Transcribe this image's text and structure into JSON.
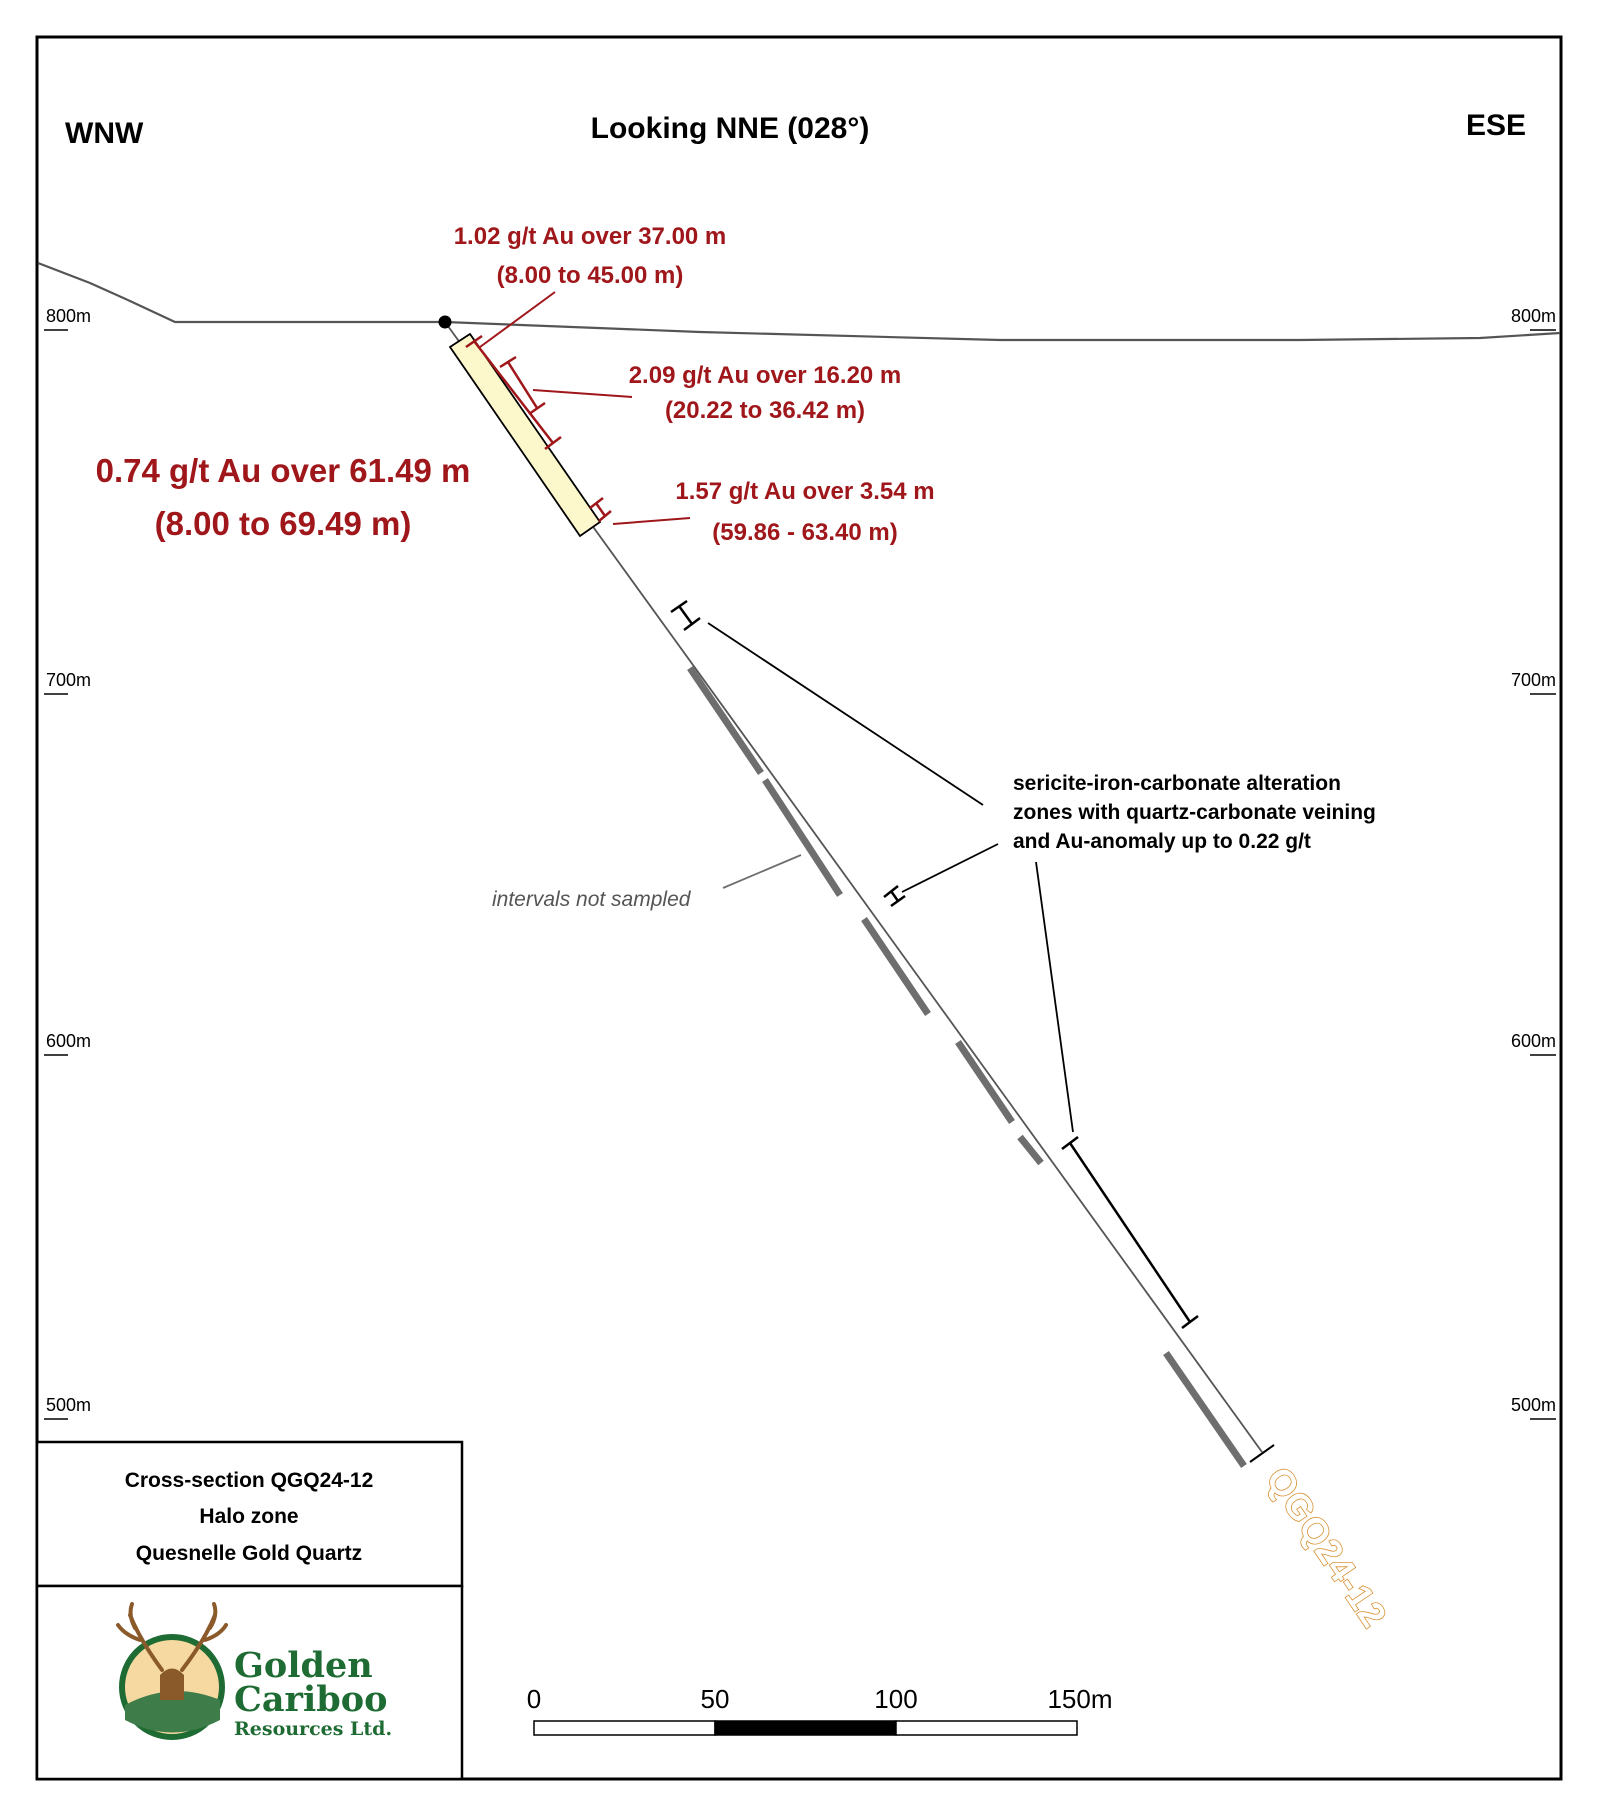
{
  "header": {
    "left": "WNW",
    "center": "Looking NNE (028°)",
    "right": "ESE"
  },
  "elevations": [
    "800m",
    "700m",
    "600m",
    "500m"
  ],
  "intercepts": {
    "main": {
      "line1": "0.74 g/t Au over 61.49 m",
      "line2": "(8.00 to 69.49 m)"
    },
    "i1": {
      "line1": "1.02 g/t Au over 37.00 m",
      "line2": "(8.00 to 45.00 m)"
    },
    "i2": {
      "line1": "2.09 g/t Au over 16.20 m",
      "line2": "(20.22 to 36.42 m)"
    },
    "i3": {
      "line1": "1.57 g/t Au over 3.54 m",
      "line2": "(59.86 - 63.40 m)"
    }
  },
  "alteration_note": {
    "line1": "sericite-iron-carbonate alteration",
    "line2": "zones with quartz-carbonate veining",
    "line3": "and Au-anomaly up to 0.22 g/t"
  },
  "not_sampled_note": "intervals not sampled",
  "hole_id": "QGQ24-12",
  "title_block": {
    "line1": "Cross-section QGQ24-12",
    "line2": "Halo zone",
    "line3": "Quesnelle Gold Quartz"
  },
  "logo": {
    "word1": "Golden",
    "word2": "Cariboo",
    "word3": "Resources Ltd."
  },
  "scale_bar": {
    "labels": [
      "0",
      "50",
      "100",
      "150m"
    ]
  },
  "colors": {
    "intercept_red": "#a0171b",
    "mineralized_zone_fill": "#fdf8cc",
    "hole_label_orange": "#d89030",
    "logo_green": "#1e6b33",
    "not_sampled_gray": "#6e6e6e"
  }
}
